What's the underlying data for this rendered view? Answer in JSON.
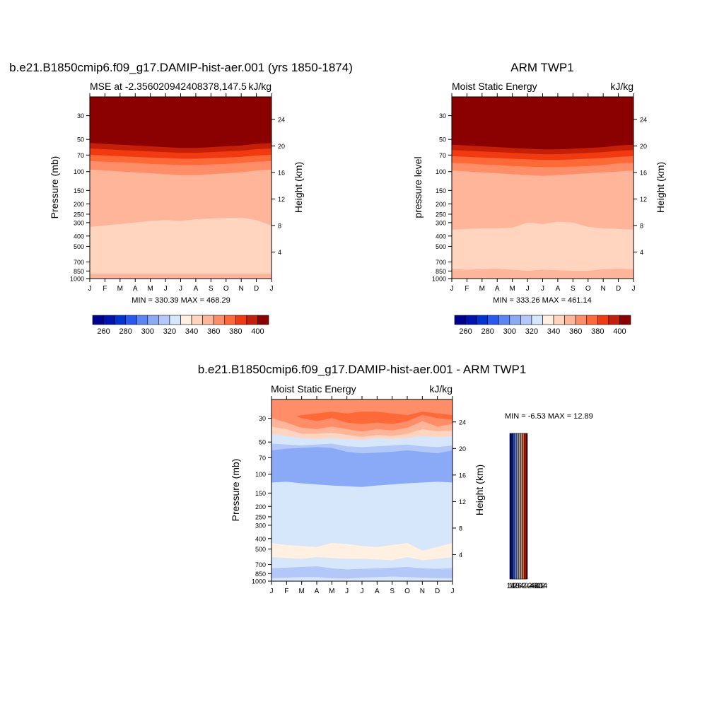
{
  "colors": {
    "abs_levels": [
      "#000091",
      "#0012b3",
      "#0033d3",
      "#2758f0",
      "#5a86f5",
      "#8aaaf7",
      "#b3c8f8",
      "#d6e6fb",
      "#fff0e2",
      "#ffd5c0",
      "#ffb599",
      "#ff8e68",
      "#ff6837",
      "#f13a0f",
      "#c51f07",
      "#8b0000"
    ],
    "diff_levels": [
      "#000091",
      "#0012b3",
      "#0033d3",
      "#2758f0",
      "#5a86f5",
      "#8aaaf7",
      "#b3c8f8",
      "#d6e6fb",
      "#fff0e2",
      "#ffd5c0",
      "#ffb599",
      "#ff8e68",
      "#ff6837",
      "#f13a0f",
      "#c51f07",
      "#8b0000"
    ]
  },
  "chart_data": [
    {
      "id": "model",
      "type": "heatmap",
      "title": "b.e21.B1850cmip6.f09_g17.DAMIP-hist-aer.001 (yrs 1850-1874)",
      "subtitle_left": "MSE at -2.356020942408378,147.5",
      "subtitle_right": "kJ/kg",
      "ylabel": "Pressure (mb)",
      "ylabel_right": "Height (km)",
      "stats": "MIN = 330.39 MAX = 468.29",
      "x_ticks": [
        "J",
        "F",
        "M",
        "A",
        "M",
        "J",
        "J",
        "A",
        "S",
        "O",
        "N",
        "D",
        "J"
      ],
      "y_ticks": [
        "30",
        "50",
        "70",
        "100",
        "150",
        "200",
        "250",
        "300",
        "400",
        "500",
        "700",
        "850",
        "1000"
      ],
      "right_ticks": [
        "24",
        "20",
        "16",
        "12",
        "8",
        "4"
      ],
      "colorbar_labels": [
        "260",
        "280",
        "300",
        "320",
        "340",
        "360",
        "380",
        "400"
      ],
      "layers": [
        {
          "level": 15,
          "boundary_p": [
            54,
            55,
            56,
            57,
            58,
            59,
            60,
            60,
            59,
            58,
            57,
            55,
            54
          ]
        },
        {
          "level": 14,
          "boundary_p": [
            61,
            62,
            63,
            64,
            65,
            66,
            67,
            67,
            66,
            65,
            64,
            62,
            61
          ]
        },
        {
          "level": 13,
          "boundary_p": [
            70,
            71,
            72,
            73,
            74,
            75,
            76,
            76,
            75,
            74,
            73,
            71,
            70
          ]
        },
        {
          "level": 12,
          "boundary_p": [
            80,
            81,
            82,
            83,
            85,
            86,
            87,
            87,
            86,
            85,
            83,
            81,
            80
          ]
        },
        {
          "level": 11,
          "boundary_p": [
            96,
            98,
            100,
            102,
            104,
            106,
            108,
            108,
            106,
            104,
            102,
            98,
            96
          ]
        },
        {
          "level": 10,
          "boundary_p": [
            330,
            320,
            310,
            300,
            290,
            285,
            290,
            280,
            275,
            272,
            270,
            285,
            320
          ]
        },
        {
          "level": 9,
          "boundary_p": [
            900,
            900,
            900,
            900,
            900,
            900,
            900,
            900,
            900,
            900,
            900,
            900,
            900
          ]
        },
        {
          "level": 10,
          "boundary_p": [
            1000,
            1000,
            1000,
            1000,
            1000,
            1000,
            1000,
            1000,
            1000,
            1000,
            1000,
            1000,
            1000
          ]
        }
      ]
    },
    {
      "id": "obs",
      "type": "heatmap",
      "title": "ARM TWP1",
      "subtitle_left": "Moist Static Energy",
      "subtitle_right": "kJ/kg",
      "ylabel": "pressure level",
      "ylabel_right": "Height (km)",
      "stats": "MIN = 333.26 MAX = 461.14",
      "x_ticks": [
        "J",
        "F",
        "M",
        "A",
        "M",
        "J",
        "J",
        "A",
        "S",
        "O",
        "N",
        "D",
        "J"
      ],
      "y_ticks": [
        "30",
        "50",
        "70",
        "100",
        "150",
        "200",
        "250",
        "300",
        "400",
        "500",
        "700",
        "850",
        "1000"
      ],
      "right_ticks": [
        "24",
        "20",
        "16",
        "12",
        "8",
        "4"
      ],
      "colorbar_labels": [
        "260",
        "280",
        "300",
        "320",
        "340",
        "360",
        "380",
        "400"
      ],
      "layers": [
        {
          "level": 15,
          "boundary_p": [
            56,
            57,
            58,
            59,
            60,
            61,
            62,
            62,
            61,
            60,
            59,
            57,
            56
          ]
        },
        {
          "level": 14,
          "boundary_p": [
            63,
            64,
            65,
            66,
            67,
            68,
            69,
            69,
            68,
            67,
            66,
            64,
            63
          ]
        },
        {
          "level": 13,
          "boundary_p": [
            72,
            73,
            74,
            75,
            76,
            77,
            78,
            78,
            77,
            76,
            75,
            73,
            72
          ]
        },
        {
          "level": 12,
          "boundary_p": [
            83,
            84,
            86,
            87,
            89,
            90,
            91,
            91,
            90,
            89,
            87,
            84,
            83
          ]
        },
        {
          "level": 11,
          "boundary_p": [
            98,
            100,
            102,
            104,
            106,
            108,
            110,
            108,
            106,
            104,
            102,
            100,
            98
          ]
        },
        {
          "level": 10,
          "boundary_p": [
            350,
            345,
            340,
            340,
            335,
            300,
            310,
            295,
            300,
            330,
            340,
            345,
            350
          ]
        },
        {
          "level": 9,
          "boundary_p": [
            820,
            830,
            820,
            810,
            830,
            850,
            830,
            840,
            850,
            850,
            820,
            810,
            820
          ]
        },
        {
          "level": 10,
          "boundary_p": [
            1000,
            1000,
            1000,
            1000,
            1000,
            1000,
            1000,
            1000,
            1000,
            1000,
            1000,
            1000,
            1000
          ]
        }
      ]
    },
    {
      "id": "diff",
      "type": "heatmap",
      "title": "b.e21.B1850cmip6.f09_g17.DAMIP-hist-aer.001 - ARM TWP1",
      "subtitle_left": "Moist Static Energy",
      "subtitle_right": "kJ/kg",
      "ylabel": "Pressure (mb)",
      "ylabel_right": "Height (km)",
      "stats": "MIN =  -6.53 MAX =  12.89",
      "x_ticks": [
        "J",
        "F",
        "M",
        "A",
        "M",
        "J",
        "J",
        "A",
        "S",
        "O",
        "N",
        "D",
        "J"
      ],
      "y_ticks": [
        "30",
        "50",
        "70",
        "100",
        "150",
        "200",
        "250",
        "300",
        "400",
        "500",
        "700",
        "850",
        "1000"
      ],
      "right_ticks": [
        "24",
        "20",
        "16",
        "12",
        "8",
        "4"
      ],
      "colorbar_labels": [
        "14",
        "12",
        "10",
        "8",
        "6",
        "4",
        "2",
        "0",
        "-2",
        "-4",
        "-6",
        "-8",
        "-10",
        "-12",
        "-14"
      ],
      "layers": [
        {
          "level": 11,
          "boundary_p": [
            28,
            30,
            28,
            27,
            26,
            27,
            26,
            26,
            27,
            28,
            26,
            27,
            28
          ]
        },
        {
          "level": 12,
          "boundary_p": [
            25,
            27,
            30,
            32,
            30,
            33,
            34,
            33,
            34,
            32,
            28,
            30,
            31
          ]
        },
        {
          "level": 11,
          "boundary_p": [
            30,
            33,
            37,
            38,
            36,
            38,
            40,
            38,
            39,
            37,
            32,
            36,
            34
          ]
        },
        {
          "level": 10,
          "boundary_p": [
            36,
            38,
            42,
            42,
            41,
            43,
            45,
            43,
            44,
            42,
            38,
            40,
            39
          ]
        },
        {
          "level": 9,
          "boundary_p": [
            42,
            44,
            46,
            47,
            46,
            47,
            48,
            46,
            47,
            46,
            44,
            45,
            44
          ]
        },
        {
          "level": 7,
          "boundary_p": [
            52,
            53,
            54,
            53,
            52,
            55,
            56,
            55,
            54,
            53,
            55,
            56,
            54
          ]
        },
        {
          "level": 6,
          "boundary_p": [
            60,
            58,
            57,
            56,
            57,
            62,
            64,
            63,
            62,
            60,
            62,
            64,
            60
          ]
        },
        {
          "level": 5,
          "boundary_p": [
            120,
            118,
            122,
            125,
            128,
            130,
            132,
            128,
            125,
            122,
            120,
            118,
            120
          ]
        },
        {
          "level": 7,
          "boundary_p": [
            440,
            460,
            470,
            480,
            440,
            450,
            470,
            480,
            460,
            440,
            520,
            480,
            440
          ]
        },
        {
          "level": 8,
          "boundary_p": [
            600,
            610,
            620,
            600,
            610,
            620,
            620,
            630,
            640,
            600,
            640,
            620,
            600
          ]
        },
        {
          "level": 7,
          "boundary_p": [
            760,
            750,
            740,
            730,
            760,
            780,
            770,
            760,
            750,
            740,
            760,
            770,
            760
          ]
        },
        {
          "level": 6,
          "boundary_p": [
            940,
            930,
            920,
            920,
            940,
            950,
            930,
            920,
            910,
            920,
            930,
            940,
            940
          ]
        },
        {
          "level": 7,
          "boundary_p": [
            1000,
            1000,
            1000,
            1000,
            1000,
            1000,
            1000,
            1000,
            1000,
            1000,
            1000,
            1000,
            1000
          ]
        }
      ]
    }
  ]
}
